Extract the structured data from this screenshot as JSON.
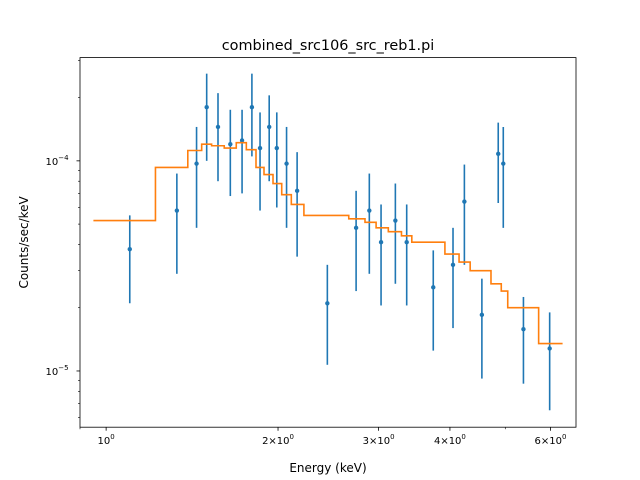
{
  "chart_data": {
    "type": "scatter",
    "title": "combined_src106_src_reb1.pi",
    "xlabel": "Energy (keV)",
    "ylabel": "Counts/sec/keV",
    "x_scale": "log",
    "y_scale": "log",
    "xlim": [
      0.9,
      6.65
    ],
    "ylim": [
      5.4e-06,
      0.00031
    ],
    "x_ticks": [
      {
        "value": 1,
        "label": "10^0"
      },
      {
        "value": 2,
        "label": "2×10^0"
      },
      {
        "value": 3,
        "label": "3×10^0"
      },
      {
        "value": 4,
        "label": "4×10^0"
      },
      {
        "value": 6,
        "label": "6×10^0"
      }
    ],
    "y_ticks": [
      {
        "value": 1e-05,
        "label": "10^-5"
      },
      {
        "value": 0.0001,
        "label": "10^-4"
      }
    ],
    "grid": false,
    "series": [
      {
        "kind": "errorbar",
        "color": "#1f77b4",
        "points": [
          {
            "x": 1.1,
            "y": 3.8e-05,
            "ylo": 2.1e-05,
            "yhi": 5.5e-05
          },
          {
            "x": 1.33,
            "y": 5.8e-05,
            "ylo": 2.9e-05,
            "yhi": 8.7e-05
          },
          {
            "x": 1.44,
            "y": 9.7e-05,
            "ylo": 4.8e-05,
            "yhi": 0.000145
          },
          {
            "x": 1.5,
            "y": 0.00018,
            "ylo": 0.0001,
            "yhi": 0.00026
          },
          {
            "x": 1.57,
            "y": 0.000145,
            "ylo": 8e-05,
            "yhi": 0.00021
          },
          {
            "x": 1.65,
            "y": 0.00012,
            "ylo": 6.8e-05,
            "yhi": 0.000175
          },
          {
            "x": 1.73,
            "y": 0.000125,
            "ylo": 7e-05,
            "yhi": 0.000175
          },
          {
            "x": 1.8,
            "y": 0.00018,
            "ylo": 0.000105,
            "yhi": 0.00026
          },
          {
            "x": 1.86,
            "y": 0.000115,
            "ylo": 5.8e-05,
            "yhi": 0.00017
          },
          {
            "x": 1.93,
            "y": 0.000145,
            "ylo": 8e-05,
            "yhi": 0.000205
          },
          {
            "x": 1.99,
            "y": 0.000115,
            "ylo": 6e-05,
            "yhi": 0.00017
          },
          {
            "x": 2.07,
            "y": 9.7e-05,
            "ylo": 4.8e-05,
            "yhi": 0.000145
          },
          {
            "x": 2.16,
            "y": 7.2e-05,
            "ylo": 3.5e-05,
            "yhi": 0.00011
          },
          {
            "x": 2.44,
            "y": 2.1e-05,
            "ylo": 1.07e-05,
            "yhi": 3.2e-05
          },
          {
            "x": 2.74,
            "y": 4.8e-05,
            "ylo": 2.4e-05,
            "yhi": 7.2e-05
          },
          {
            "x": 2.89,
            "y": 5.8e-05,
            "ylo": 2.9e-05,
            "yhi": 8.7e-05
          },
          {
            "x": 3.03,
            "y": 4.1e-05,
            "ylo": 2.05e-05,
            "yhi": 6.2e-05
          },
          {
            "x": 3.21,
            "y": 5.2e-05,
            "ylo": 2.6e-05,
            "yhi": 7.8e-05
          },
          {
            "x": 3.36,
            "y": 4.1e-05,
            "ylo": 2.05e-05,
            "yhi": 6.2e-05
          },
          {
            "x": 3.74,
            "y": 2.5e-05,
            "ylo": 1.25e-05,
            "yhi": 3.75e-05
          },
          {
            "x": 4.05,
            "y": 3.2e-05,
            "ylo": 1.6e-05,
            "yhi": 4.8e-05
          },
          {
            "x": 4.24,
            "y": 6.4e-05,
            "ylo": 3.2e-05,
            "yhi": 9.6e-05
          },
          {
            "x": 4.55,
            "y": 1.85e-05,
            "ylo": 9.2e-06,
            "yhi": 2.75e-05
          },
          {
            "x": 4.86,
            "y": 0.000108,
            "ylo": 6.3e-05,
            "yhi": 0.000152
          },
          {
            "x": 4.96,
            "y": 9.7e-05,
            "ylo": 4.8e-05,
            "yhi": 0.000145
          },
          {
            "x": 5.38,
            "y": 1.58e-05,
            "ylo": 8.7e-06,
            "yhi": 2.25e-05
          },
          {
            "x": 5.98,
            "y": 1.28e-05,
            "ylo": 6.5e-06,
            "yhi": 1.9e-05
          }
        ]
      },
      {
        "kind": "step",
        "color": "#ff7f0e",
        "x": [
          0.95,
          1.22,
          1.22,
          1.39,
          1.39,
          1.47,
          1.47,
          1.53,
          1.53,
          1.61,
          1.61,
          1.69,
          1.69,
          1.76,
          1.76,
          1.83,
          1.83,
          1.89,
          1.89,
          1.96,
          1.96,
          2.03,
          2.03,
          2.11,
          2.11,
          2.22,
          2.22,
          2.66,
          2.66,
          2.84,
          2.84,
          2.97,
          2.97,
          3.12,
          3.12,
          3.29,
          3.29,
          3.43,
          3.43,
          3.92,
          3.92,
          4.15,
          4.15,
          4.34,
          4.34,
          4.72,
          4.72,
          4.92,
          4.92,
          5.05,
          5.05,
          5.72,
          5.72,
          6.3
        ],
        "y": [
          5.2e-05,
          5.2e-05,
          9.3e-05,
          9.3e-05,
          0.000112,
          0.000112,
          0.00012,
          0.00012,
          0.000118,
          0.000118,
          0.000115,
          0.000115,
          0.000122,
          0.000122,
          0.000113,
          0.000113,
          9.3e-05,
          9.3e-05,
          8.6e-05,
          8.6e-05,
          7.8e-05,
          7.8e-05,
          6.9e-05,
          6.9e-05,
          6.2e-05,
          6.2e-05,
          5.5e-05,
          5.5e-05,
          5.3e-05,
          5.3e-05,
          5.1e-05,
          5.1e-05,
          4.8e-05,
          4.8e-05,
          4.6e-05,
          4.6e-05,
          4.4e-05,
          4.4e-05,
          4.1e-05,
          4.1e-05,
          3.6e-05,
          3.6e-05,
          3.3e-05,
          3.3e-05,
          3e-05,
          3e-05,
          2.6e-05,
          2.6e-05,
          2.4e-05,
          2.4e-05,
          2e-05,
          2e-05,
          1.35e-05,
          1.35e-05
        ]
      }
    ]
  }
}
